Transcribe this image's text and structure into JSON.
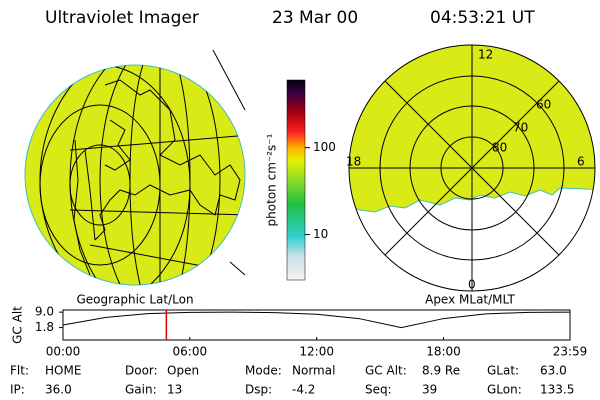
{
  "header": {
    "title": "Ultraviolet Imager",
    "date": "23 Mar 00",
    "time": "04:53:21 UT"
  },
  "left_panel": {
    "label": "Geographic Lat/Lon"
  },
  "right_panel": {
    "label": "Apex MLat/MLT",
    "mlt_labels": [
      "12",
      "18",
      "6",
      "0"
    ],
    "lat_labels": [
      "60",
      "70",
      "80"
    ]
  },
  "colorbar": {
    "label": "photon cm⁻²s⁻¹",
    "log": true,
    "lim": [
      3,
      600
    ],
    "ticks": [
      100,
      10
    ]
  },
  "timeline": {
    "y_label": "GC Alt",
    "ylim": [
      -4,
      10
    ],
    "yticks": [
      {
        "value": 9,
        "label": "9.0"
      },
      1.8
    ],
    "xlim": [
      0,
      23.983
    ],
    "xticks": [
      {
        "value": 0,
        "label": "00:00"
      },
      {
        "value": 6,
        "label": "06:00"
      },
      {
        "value": 12,
        "label": "12:00"
      },
      {
        "value": 18,
        "label": "18:00"
      },
      {
        "value": 23.983,
        "label": "23:59"
      }
    ],
    "altitude": {
      "x": [
        0,
        2,
        4,
        6,
        8,
        10,
        12,
        14,
        16,
        18,
        20,
        22,
        23.983
      ],
      "values": [
        3,
        6.5,
        8.3,
        8.9,
        9,
        8.8,
        8,
        6,
        1.8,
        6,
        8.2,
        8.9,
        9
      ]
    },
    "marker": 4.889
  },
  "footer": {
    "rows": [
      [
        {
          "label": "Flt:",
          "value": "HOME"
        },
        {
          "label": "Door:",
          "value": "Open"
        },
        {
          "label": "Mode:",
          "value": "Normal"
        },
        {
          "label": "GC Alt:",
          "value": "8.9 Re"
        },
        {
          "label": "GLat:",
          "value": "63.0"
        }
      ],
      [
        {
          "label": "IP:",
          "value": "36.0"
        },
        {
          "label": "Gain:",
          "value": "13"
        },
        {
          "label": "Dsp:",
          "value": "-4.2"
        },
        {
          "label": "Seq:",
          "value": "39"
        },
        {
          "label": "GLon:",
          "value": "133.5"
        }
      ]
    ]
  }
}
